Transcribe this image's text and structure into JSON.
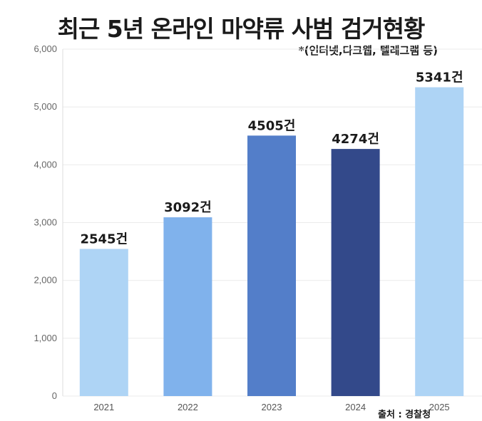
{
  "chart_data": {
    "type": "bar",
    "title": "최근 5년 온라인 마약류 사범 검거현황",
    "subtitle": "*(인터넷,다크웹, 텔레그램 등)",
    "source": "출처 : 경찰청",
    "categories": [
      "2021",
      "2022",
      "2023",
      "2024",
      "2025"
    ],
    "values": [
      2545,
      3092,
      4505,
      4274,
      5341
    ],
    "data_labels": [
      "2545건",
      "3092건",
      "4505건",
      "4274건",
      "5341건"
    ],
    "bar_colors": [
      "#aed4f5",
      "#80b2ec",
      "#537ec9",
      "#33498a",
      "#aed4f5"
    ],
    "ylim": [
      0,
      6000
    ],
    "yticks": [
      "0",
      "1,000",
      "2,000",
      "3,000",
      "4,000",
      "5,000",
      "6,000"
    ],
    "grid": true,
    "xlabel": "",
    "ylabel": ""
  }
}
